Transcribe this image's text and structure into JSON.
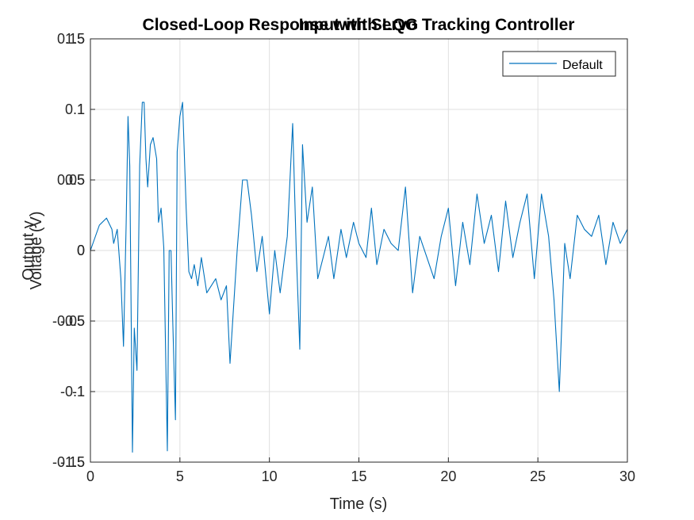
{
  "chart_data": {
    "type": "line",
    "overlapping_axes": true,
    "title_back": "Input with LQG",
    "title_front": "Closed-Loop Response with Servo Tracking Controller",
    "xlabel": "Time (s)",
    "ylabel_back": "Voltage (V)",
    "ylabel_front": "Output y",
    "xlim": [
      0,
      30
    ],
    "ylim_back": [
      -0.15,
      0.15
    ],
    "ylim_front": [
      -1.5,
      1.5
    ],
    "x_ticks": [
      "0",
      "5",
      "10",
      "15",
      "20",
      "25",
      "30"
    ],
    "y_ticks_back": [
      "-0.15",
      "-0.1",
      "-0.05",
      "0",
      "0.05",
      "0.1",
      "0.15"
    ],
    "y_ticks_front": [
      "-1.5",
      "-1",
      "-0.5",
      "0",
      "0.5",
      "1",
      "1.5"
    ],
    "grid": true,
    "legend": {
      "placement": "top-right",
      "entries": [
        "Default"
      ]
    },
    "line_color": "#0072BD",
    "series": [
      {
        "name": "Default",
        "x": [
          0,
          0.5,
          0.9,
          1.2,
          1.3,
          1.5,
          1.7,
          1.85,
          2.0,
          2.1,
          2.2,
          2.35,
          2.45,
          2.6,
          2.75,
          2.9,
          3.0,
          3.1,
          3.2,
          3.35,
          3.5,
          3.7,
          3.8,
          3.95,
          4.1,
          4.3,
          4.4,
          4.5,
          4.6,
          4.75,
          4.85,
          5.0,
          5.15,
          5.35,
          5.5,
          5.65,
          5.8,
          6.0,
          6.2,
          6.5,
          7.0,
          7.3,
          7.6,
          7.8,
          8.0,
          8.2,
          8.5,
          8.75,
          9.0,
          9.3,
          9.6,
          10.0,
          10.3,
          10.6,
          11.0,
          11.3,
          11.5,
          11.7,
          11.85,
          12.1,
          12.4,
          12.7,
          13.0,
          13.3,
          13.6,
          14.0,
          14.3,
          14.7,
          15.0,
          15.4,
          15.7,
          16.0,
          16.4,
          16.8,
          17.2,
          17.6,
          18.0,
          18.4,
          18.8,
          19.2,
          19.6,
          20.0,
          20.4,
          20.8,
          21.2,
          21.6,
          22.0,
          22.4,
          22.8,
          23.2,
          23.6,
          24.0,
          24.4,
          24.8,
          25.2,
          25.6,
          25.9,
          26.2,
          26.5,
          26.8,
          27.2,
          27.6,
          28.0,
          28.4,
          28.8,
          29.2,
          29.6,
          30.0
        ],
        "y": [
          0.0,
          0.18,
          0.23,
          0.15,
          0.05,
          0.15,
          -0.2,
          -0.68,
          0.2,
          0.95,
          0.6,
          -1.43,
          -0.55,
          -0.85,
          0.6,
          1.05,
          1.05,
          0.65,
          0.45,
          0.75,
          0.8,
          0.65,
          0.2,
          0.3,
          0.02,
          -1.42,
          0.0,
          0.0,
          -0.5,
          -1.2,
          0.7,
          0.95,
          1.05,
          0.3,
          -0.15,
          -0.2,
          -0.1,
          -0.25,
          -0.05,
          -0.3,
          -0.2,
          -0.35,
          -0.25,
          -0.8,
          -0.4,
          0.0,
          0.5,
          0.5,
          0.25,
          -0.15,
          0.1,
          -0.45,
          0.0,
          -0.3,
          0.1,
          0.9,
          0.0,
          -0.7,
          0.75,
          0.2,
          0.45,
          -0.2,
          -0.05,
          0.1,
          -0.2,
          0.15,
          -0.05,
          0.2,
          0.05,
          -0.05,
          0.3,
          -0.1,
          0.15,
          0.05,
          0.0,
          0.45,
          -0.3,
          0.1,
          -0.05,
          -0.2,
          0.1,
          0.3,
          -0.25,
          0.2,
          -0.1,
          0.4,
          0.05,
          0.25,
          -0.15,
          0.35,
          -0.05,
          0.2,
          0.4,
          -0.2,
          0.4,
          0.1,
          -0.35,
          -1.0,
          0.05,
          -0.2,
          0.25,
          0.15,
          0.1,
          0.25,
          -0.1,
          0.2,
          0.05,
          0.15
        ]
      }
    ]
  }
}
